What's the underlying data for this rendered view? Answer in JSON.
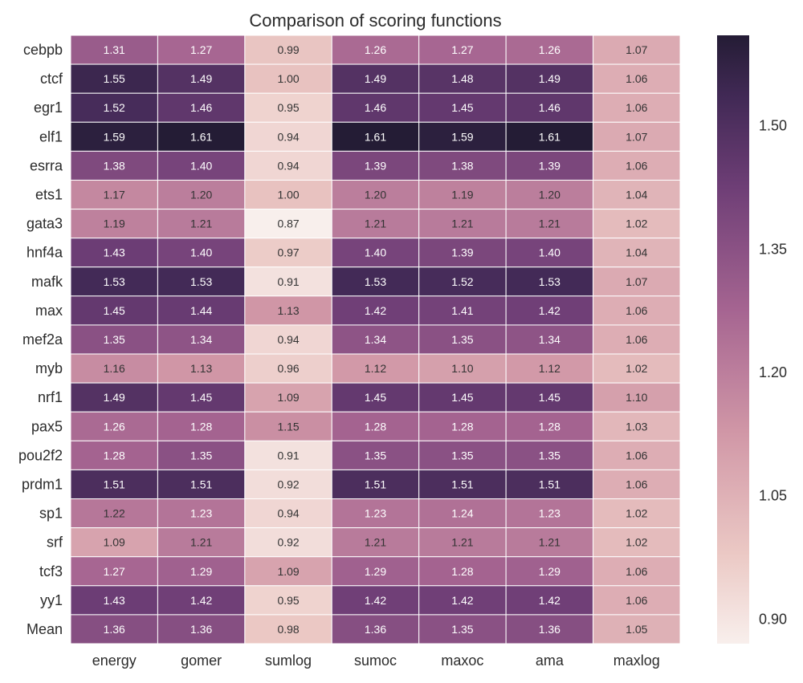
{
  "chart_data": {
    "type": "heatmap",
    "title": "Comparison of scoring functions",
    "columns": [
      "energy",
      "gomer",
      "sumlog",
      "sumoc",
      "maxoc",
      "ama",
      "maxlog"
    ],
    "rows": [
      "cebpb",
      "ctcf",
      "egr1",
      "elf1",
      "esrra",
      "ets1",
      "gata3",
      "hnf4a",
      "mafk",
      "max",
      "mef2a",
      "myb",
      "nrf1",
      "pax5",
      "pou2f2",
      "prdm1",
      "sp1",
      "srf",
      "tcf3",
      "yy1",
      "Mean"
    ],
    "values": [
      [
        1.31,
        1.27,
        0.99,
        1.26,
        1.27,
        1.26,
        1.07
      ],
      [
        1.55,
        1.49,
        1.0,
        1.49,
        1.48,
        1.49,
        1.06
      ],
      [
        1.52,
        1.46,
        0.95,
        1.46,
        1.45,
        1.46,
        1.06
      ],
      [
        1.59,
        1.61,
        0.94,
        1.61,
        1.59,
        1.61,
        1.07
      ],
      [
        1.38,
        1.4,
        0.94,
        1.39,
        1.38,
        1.39,
        1.06
      ],
      [
        1.17,
        1.2,
        1.0,
        1.2,
        1.19,
        1.2,
        1.04
      ],
      [
        1.19,
        1.21,
        0.87,
        1.21,
        1.21,
        1.21,
        1.02
      ],
      [
        1.43,
        1.4,
        0.97,
        1.4,
        1.39,
        1.4,
        1.04
      ],
      [
        1.53,
        1.53,
        0.91,
        1.53,
        1.52,
        1.53,
        1.07
      ],
      [
        1.45,
        1.44,
        1.13,
        1.42,
        1.41,
        1.42,
        1.06
      ],
      [
        1.35,
        1.34,
        0.94,
        1.34,
        1.35,
        1.34,
        1.06
      ],
      [
        1.16,
        1.13,
        0.96,
        1.12,
        1.1,
        1.12,
        1.02
      ],
      [
        1.49,
        1.45,
        1.09,
        1.45,
        1.45,
        1.45,
        1.1
      ],
      [
        1.26,
        1.28,
        1.15,
        1.28,
        1.28,
        1.28,
        1.03
      ],
      [
        1.28,
        1.35,
        0.91,
        1.35,
        1.35,
        1.35,
        1.06
      ],
      [
        1.51,
        1.51,
        0.92,
        1.51,
        1.51,
        1.51,
        1.06
      ],
      [
        1.22,
        1.23,
        0.94,
        1.23,
        1.24,
        1.23,
        1.02
      ],
      [
        1.09,
        1.21,
        0.92,
        1.21,
        1.21,
        1.21,
        1.02
      ],
      [
        1.27,
        1.29,
        1.09,
        1.29,
        1.28,
        1.29,
        1.06
      ],
      [
        1.43,
        1.42,
        0.95,
        1.42,
        1.42,
        1.42,
        1.06
      ],
      [
        1.36,
        1.36,
        0.98,
        1.36,
        1.35,
        1.36,
        1.05
      ]
    ],
    "value_format": "2 decimals",
    "colorbar": {
      "min": 0.87,
      "max": 1.61,
      "ticks": [
        0.9,
        1.05,
        1.2,
        1.35,
        1.5
      ],
      "tick_labels": [
        "0.90",
        "1.05",
        "1.20",
        "1.35",
        "1.50"
      ],
      "low_color": "#f8efec",
      "high_color": "#241c35"
    },
    "grid": false,
    "legend": "colorbar-right"
  }
}
